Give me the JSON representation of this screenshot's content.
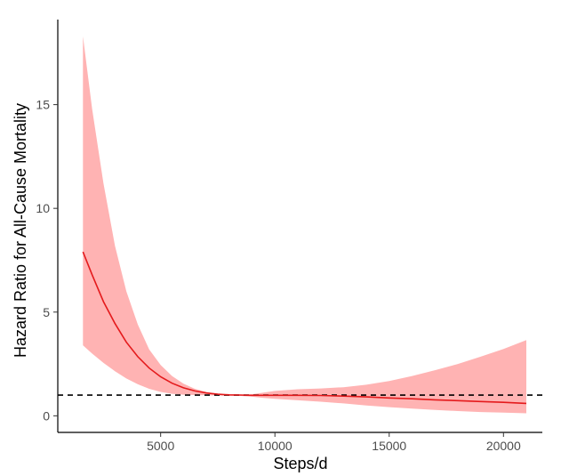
{
  "chart_data": {
    "type": "line",
    "xlabel": "Steps/d",
    "ylabel": "Hazard Ratio for All-Cause Mortality",
    "xlim": [
      500,
      21700
    ],
    "ylim": [
      -0.8,
      19.1
    ],
    "x_ticks": [
      5000,
      10000,
      15000,
      20000
    ],
    "y_ticks": [
      0,
      5,
      10,
      15
    ],
    "grid": false,
    "reference_line": {
      "y": 1,
      "style": "dashed",
      "color": "#000000"
    },
    "series": [
      {
        "color": "#e41a1c",
        "band_color": "#ffb3b3",
        "x": [
          1600,
          2000,
          2500,
          3000,
          3500,
          4000,
          4500,
          5000,
          5500,
          6000,
          6500,
          7000,
          7500,
          8000,
          8500,
          9000,
          9500,
          10000,
          11000,
          12000,
          13000,
          14000,
          15000,
          16000,
          17000,
          18000,
          19000,
          20000,
          21000
        ],
        "hr": [
          7.9,
          6.8,
          5.5,
          4.45,
          3.55,
          2.85,
          2.3,
          1.88,
          1.57,
          1.35,
          1.2,
          1.1,
          1.04,
          1.01,
          1.0,
          0.99,
          0.99,
          0.99,
          0.99,
          0.98,
          0.95,
          0.91,
          0.86,
          0.82,
          0.77,
          0.73,
          0.69,
          0.65,
          0.6
        ],
        "lower": [
          3.4,
          3.0,
          2.55,
          2.15,
          1.8,
          1.52,
          1.3,
          1.15,
          1.06,
          1.02,
          1.0,
          0.99,
          0.98,
          0.97,
          0.96,
          0.92,
          0.86,
          0.82,
          0.75,
          0.68,
          0.6,
          0.5,
          0.42,
          0.35,
          0.28,
          0.23,
          0.18,
          0.15,
          0.12
        ],
        "upper": [
          18.3,
          14.8,
          11.2,
          8.2,
          6.0,
          4.4,
          3.2,
          2.45,
          1.92,
          1.55,
          1.3,
          1.15,
          1.06,
          1.01,
          1.0,
          1.04,
          1.12,
          1.2,
          1.28,
          1.32,
          1.38,
          1.5,
          1.68,
          1.92,
          2.2,
          2.5,
          2.85,
          3.22,
          3.65
        ]
      }
    ]
  }
}
